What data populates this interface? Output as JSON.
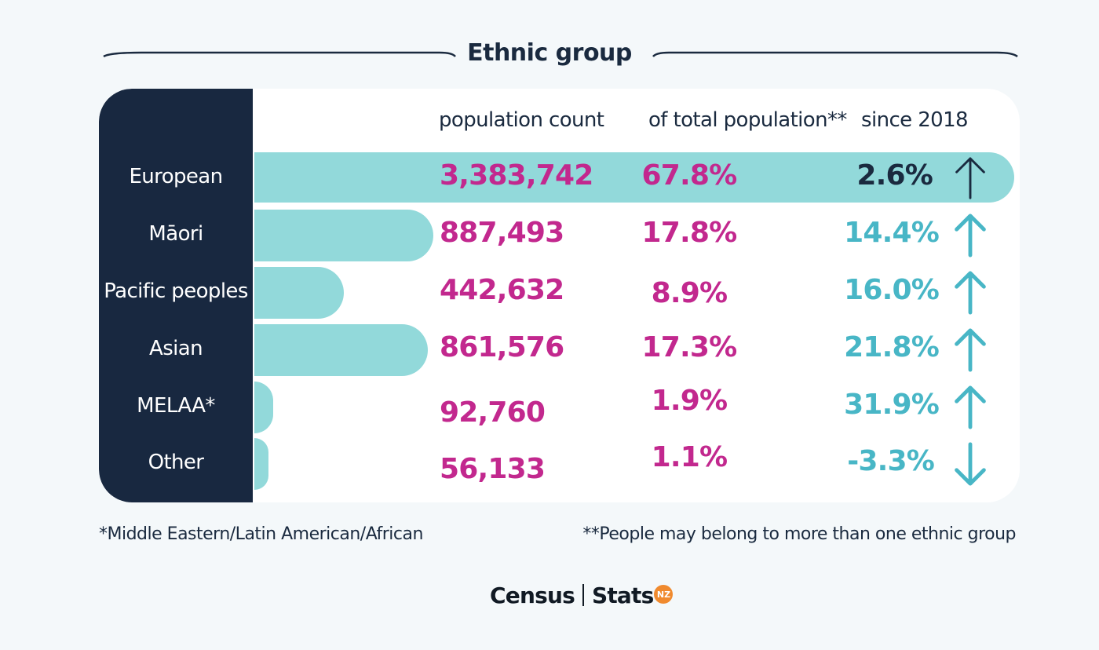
{
  "title": "Ethnic group",
  "headers": {
    "count": "population count",
    "share": "of total population**",
    "change": "since 2018"
  },
  "colors": {
    "bar": "#92d9da",
    "sidebar": "#182840",
    "value": "#c2288e",
    "change": "#48b6c6",
    "highlight": "#1a2a3f"
  },
  "chart_data": {
    "type": "bar",
    "categories": [
      "European",
      "Māori",
      "Pacific peoples",
      "Asian",
      "MELAA*",
      "Other"
    ],
    "values": [
      3383742,
      887493,
      442632,
      861576,
      92760,
      56133
    ],
    "value_labels": [
      "3,383,742",
      "887,493",
      "442,632",
      "861,576",
      "92,760",
      "56,133"
    ],
    "share_labels": [
      "67.8%",
      "17.8%",
      "8.9%",
      "17.3%",
      "1.9%",
      "1.1%"
    ],
    "share_values": [
      67.8,
      17.8,
      8.9,
      17.3,
      1.9,
      1.1
    ],
    "change_labels": [
      "2.6%",
      "14.4%",
      "16.0%",
      "21.8%",
      "31.9%",
      "-3.3%"
    ],
    "change_values": [
      2.6,
      14.4,
      16.0,
      21.8,
      31.9,
      -3.3
    ],
    "change_direction": [
      "up",
      "up",
      "up",
      "up",
      "up",
      "down"
    ]
  },
  "footnotes": {
    "left": "*Middle Eastern/Latin American/African",
    "right": "**People may belong to more than one ethnic group"
  },
  "logo": {
    "census": "Census",
    "stats": "Stats",
    "nz": "NZ"
  }
}
